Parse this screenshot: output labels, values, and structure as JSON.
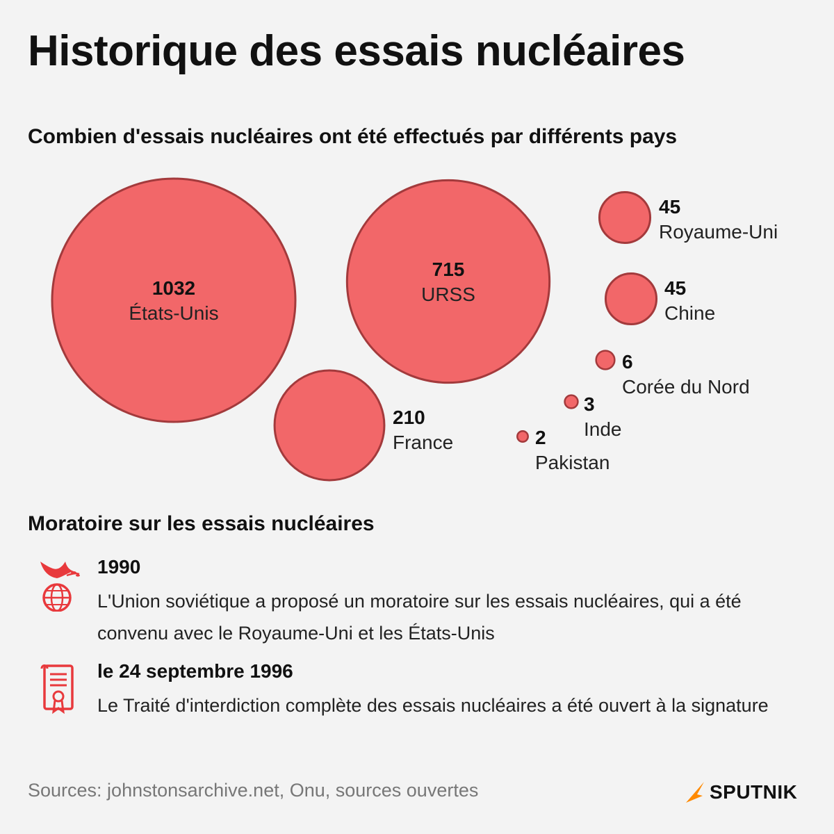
{
  "title": "Historique des essais nucléaires",
  "chart_data": {
    "type": "bubble",
    "title": "Combien d'essais nucléaires ont été effectués par différents pays",
    "categories": [
      "États-Unis",
      "URSS",
      "France",
      "Royaume-Uni",
      "Chine",
      "Corée du Nord",
      "Inde",
      "Pakistan"
    ],
    "values": [
      1032,
      715,
      210,
      45,
      45,
      6,
      3,
      2
    ],
    "value_labels": [
      "1032",
      "715",
      "210",
      "45",
      "45",
      "6",
      "3",
      "2"
    ],
    "colors": {
      "fill": "#f26769",
      "stroke": "#a33a3c"
    }
  },
  "moratorium": {
    "title": "Moratoire sur les essais nucléaires",
    "events": [
      {
        "date": "1990",
        "text": "L'Union soviétique a proposé un moratoire sur les essais nucléaires, qui a été convenu avec le Royaume-Uni et les États-Unis",
        "icon": "dove-globe-icon"
      },
      {
        "date": "le 24 septembre 1996",
        "text": "Le Traité d'interdiction complète des essais nucléaires a été ouvert à la signature",
        "icon": "treaty-document-icon"
      }
    ]
  },
  "sources": "Sources: johnstonsarchive.net, Onu, sources ouvertes",
  "brand": {
    "name": "SPUTNIK",
    "accent": "#ff8a00"
  },
  "accent": "#e8393c"
}
